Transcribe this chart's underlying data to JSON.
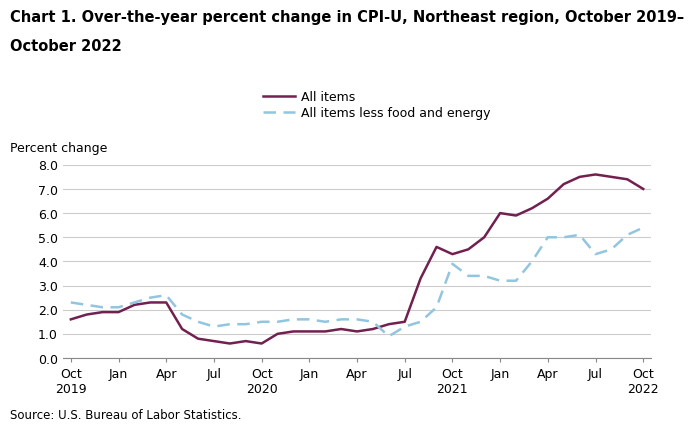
{
  "title_line1": "Chart 1. Over-the-year percent change in CPI-U, Northeast region, October 2019–",
  "title_line2": "October 2022",
  "ylabel": "Percent change",
  "source": "Source: U.S. Bureau of Labor Statistics.",
  "ylim": [
    0.0,
    8.0
  ],
  "yticks": [
    0.0,
    1.0,
    2.0,
    3.0,
    4.0,
    5.0,
    6.0,
    7.0,
    8.0
  ],
  "x_labels": [
    "Oct\n2019",
    "Jan",
    "Apr",
    "Jul",
    "Oct\n2020",
    "Jan",
    "Apr",
    "Jul",
    "Oct\n2021",
    "Jan",
    "Apr",
    "Jul",
    "Oct\n2022"
  ],
  "tick_positions": [
    0,
    3,
    6,
    9,
    12,
    15,
    18,
    21,
    24,
    27,
    30,
    33,
    36
  ],
  "all_items_y": [
    1.6,
    1.8,
    1.9,
    1.9,
    2.2,
    2.3,
    2.3,
    1.2,
    0.8,
    0.7,
    0.6,
    0.7,
    0.6,
    1.0,
    1.1,
    1.1,
    1.1,
    1.2,
    1.1,
    1.2,
    1.4,
    1.5,
    3.3,
    4.6,
    4.3,
    4.5,
    5.0,
    6.0,
    5.9,
    6.2,
    6.6,
    7.2,
    7.5,
    7.6,
    7.5,
    7.4,
    7.0
  ],
  "all_less_y": [
    2.3,
    2.2,
    2.1,
    2.1,
    2.3,
    2.5,
    2.6,
    1.8,
    1.5,
    1.3,
    1.4,
    1.4,
    1.5,
    1.5,
    1.6,
    1.6,
    1.5,
    1.6,
    1.6,
    1.5,
    0.9,
    1.3,
    1.5,
    2.1,
    3.9,
    3.4,
    3.4,
    3.2,
    3.2,
    4.0,
    5.0,
    5.0,
    5.1,
    4.3,
    4.5,
    5.1,
    5.4
  ],
  "all_items_color": "#722050",
  "all_items_less_color": "#92C5E0",
  "line_width": 1.8,
  "background_color": "#ffffff",
  "grid_color": "#cccccc",
  "title_fontsize": 10.5,
  "label_fontsize": 9,
  "tick_fontsize": 9,
  "legend_fontsize": 9
}
